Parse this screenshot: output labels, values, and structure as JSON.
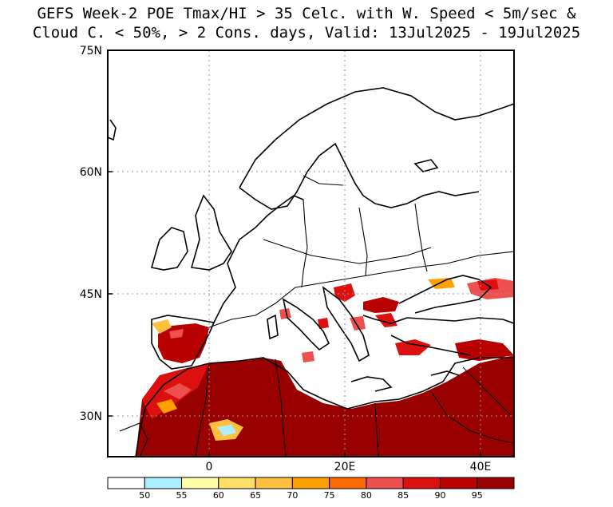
{
  "title": {
    "line1": "GEFS Week-2 POE Tmax/HI > 35 Celc. with W. Speed < 5m/sec &",
    "line2": "Cloud C. < 50%, > 2 Cons. days, Valid: 13Jul2025 - 19Jul2025"
  },
  "map": {
    "region": "Europe / North Africa / Middle East",
    "lat_labels": [
      "75N",
      "60N",
      "45N",
      "30N"
    ],
    "lon_labels": [
      "0",
      "20E",
      "40E"
    ]
  },
  "colorbar": {
    "labels": [
      "50",
      "55",
      "60",
      "65",
      "70",
      "75",
      "80",
      "85",
      "90",
      "95"
    ],
    "colors": [
      "#ffffff",
      "#aaeeff",
      "#ffffaa",
      "#ffe066",
      "#ffc040",
      "#ffa000",
      "#ff6a00",
      "#ee5050",
      "#dd1010",
      "#b80000",
      "#990000"
    ]
  }
}
